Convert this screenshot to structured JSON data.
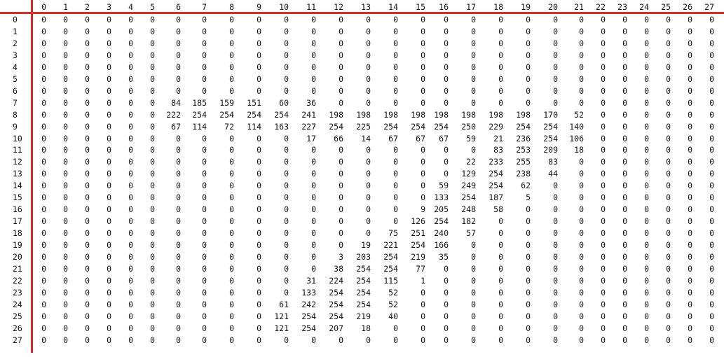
{
  "columns": [
    "0",
    "1",
    "2",
    "3",
    "4",
    "5",
    "6",
    "7",
    "8",
    "9",
    "10",
    "11",
    "12",
    "13",
    "14",
    "15",
    "16",
    "17",
    "18",
    "19",
    "20",
    "21",
    "22",
    "23",
    "24",
    "25",
    "26",
    "27"
  ],
  "rows": [
    {
      "label": "0",
      "values": [
        0,
        0,
        0,
        0,
        0,
        0,
        0,
        0,
        0,
        0,
        0,
        0,
        0,
        0,
        0,
        0,
        0,
        0,
        0,
        0,
        0,
        0,
        0,
        0,
        0,
        0,
        0,
        0
      ]
    },
    {
      "label": "1",
      "values": [
        0,
        0,
        0,
        0,
        0,
        0,
        0,
        0,
        0,
        0,
        0,
        0,
        0,
        0,
        0,
        0,
        0,
        0,
        0,
        0,
        0,
        0,
        0,
        0,
        0,
        0,
        0,
        0
      ]
    },
    {
      "label": "2",
      "values": [
        0,
        0,
        0,
        0,
        0,
        0,
        0,
        0,
        0,
        0,
        0,
        0,
        0,
        0,
        0,
        0,
        0,
        0,
        0,
        0,
        0,
        0,
        0,
        0,
        0,
        0,
        0,
        0
      ]
    },
    {
      "label": "3",
      "values": [
        0,
        0,
        0,
        0,
        0,
        0,
        0,
        0,
        0,
        0,
        0,
        0,
        0,
        0,
        0,
        0,
        0,
        0,
        0,
        0,
        0,
        0,
        0,
        0,
        0,
        0,
        0,
        0
      ]
    },
    {
      "label": "4",
      "values": [
        0,
        0,
        0,
        0,
        0,
        0,
        0,
        0,
        0,
        0,
        0,
        0,
        0,
        0,
        0,
        0,
        0,
        0,
        0,
        0,
        0,
        0,
        0,
        0,
        0,
        0,
        0,
        0
      ]
    },
    {
      "label": "5",
      "values": [
        0,
        0,
        0,
        0,
        0,
        0,
        0,
        0,
        0,
        0,
        0,
        0,
        0,
        0,
        0,
        0,
        0,
        0,
        0,
        0,
        0,
        0,
        0,
        0,
        0,
        0,
        0,
        0
      ]
    },
    {
      "label": "6",
      "values": [
        0,
        0,
        0,
        0,
        0,
        0,
        0,
        0,
        0,
        0,
        0,
        0,
        0,
        0,
        0,
        0,
        0,
        0,
        0,
        0,
        0,
        0,
        0,
        0,
        0,
        0,
        0,
        0
      ]
    },
    {
      "label": "7",
      "values": [
        0,
        0,
        0,
        0,
        0,
        0,
        84,
        185,
        159,
        151,
        60,
        36,
        0,
        0,
        0,
        0,
        0,
        0,
        0,
        0,
        0,
        0,
        0,
        0,
        0,
        0,
        0,
        0
      ]
    },
    {
      "label": "8",
      "values": [
        0,
        0,
        0,
        0,
        0,
        0,
        222,
        254,
        254,
        254,
        254,
        241,
        198,
        198,
        198,
        198,
        198,
        198,
        198,
        198,
        170,
        52,
        0,
        0,
        0,
        0,
        0,
        0
      ]
    },
    {
      "label": "9",
      "values": [
        0,
        0,
        0,
        0,
        0,
        0,
        67,
        114,
        72,
        114,
        163,
        227,
        254,
        225,
        254,
        254,
        254,
        250,
        229,
        254,
        254,
        140,
        0,
        0,
        0,
        0,
        0,
        0
      ]
    },
    {
      "label": "10",
      "values": [
        0,
        0,
        0,
        0,
        0,
        0,
        0,
        0,
        0,
        0,
        0,
        17,
        66,
        14,
        67,
        67,
        67,
        59,
        21,
        236,
        254,
        106,
        0,
        0,
        0,
        0,
        0,
        0
      ]
    },
    {
      "label": "11",
      "values": [
        0,
        0,
        0,
        0,
        0,
        0,
        0,
        0,
        0,
        0,
        0,
        0,
        0,
        0,
        0,
        0,
        0,
        0,
        83,
        253,
        209,
        18,
        0,
        0,
        0,
        0,
        0,
        0
      ]
    },
    {
      "label": "12",
      "values": [
        0,
        0,
        0,
        0,
        0,
        0,
        0,
        0,
        0,
        0,
        0,
        0,
        0,
        0,
        0,
        0,
        0,
        22,
        233,
        255,
        83,
        0,
        0,
        0,
        0,
        0,
        0,
        0
      ]
    },
    {
      "label": "13",
      "values": [
        0,
        0,
        0,
        0,
        0,
        0,
        0,
        0,
        0,
        0,
        0,
        0,
        0,
        0,
        0,
        0,
        0,
        129,
        254,
        238,
        44,
        0,
        0,
        0,
        0,
        0,
        0,
        0
      ]
    },
    {
      "label": "14",
      "values": [
        0,
        0,
        0,
        0,
        0,
        0,
        0,
        0,
        0,
        0,
        0,
        0,
        0,
        0,
        0,
        0,
        59,
        249,
        254,
        62,
        0,
        0,
        0,
        0,
        0,
        0,
        0,
        0
      ]
    },
    {
      "label": "15",
      "values": [
        0,
        0,
        0,
        0,
        0,
        0,
        0,
        0,
        0,
        0,
        0,
        0,
        0,
        0,
        0,
        0,
        133,
        254,
        187,
        5,
        0,
        0,
        0,
        0,
        0,
        0,
        0,
        0
      ]
    },
    {
      "label": "16",
      "values": [
        0,
        0,
        0,
        0,
        0,
        0,
        0,
        0,
        0,
        0,
        0,
        0,
        0,
        0,
        0,
        9,
        205,
        248,
        58,
        0,
        0,
        0,
        0,
        0,
        0,
        0,
        0,
        0
      ]
    },
    {
      "label": "17",
      "values": [
        0,
        0,
        0,
        0,
        0,
        0,
        0,
        0,
        0,
        0,
        0,
        0,
        0,
        0,
        0,
        126,
        254,
        182,
        0,
        0,
        0,
        0,
        0,
        0,
        0,
        0,
        0,
        0
      ]
    },
    {
      "label": "18",
      "values": [
        0,
        0,
        0,
        0,
        0,
        0,
        0,
        0,
        0,
        0,
        0,
        0,
        0,
        0,
        75,
        251,
        240,
        57,
        0,
        0,
        0,
        0,
        0,
        0,
        0,
        0,
        0,
        0
      ]
    },
    {
      "label": "19",
      "values": [
        0,
        0,
        0,
        0,
        0,
        0,
        0,
        0,
        0,
        0,
        0,
        0,
        0,
        19,
        221,
        254,
        166,
        0,
        0,
        0,
        0,
        0,
        0,
        0,
        0,
        0,
        0,
        0
      ]
    },
    {
      "label": "20",
      "values": [
        0,
        0,
        0,
        0,
        0,
        0,
        0,
        0,
        0,
        0,
        0,
        0,
        3,
        203,
        254,
        219,
        35,
        0,
        0,
        0,
        0,
        0,
        0,
        0,
        0,
        0,
        0,
        0
      ]
    },
    {
      "label": "21",
      "values": [
        0,
        0,
        0,
        0,
        0,
        0,
        0,
        0,
        0,
        0,
        0,
        0,
        38,
        254,
        254,
        77,
        0,
        0,
        0,
        0,
        0,
        0,
        0,
        0,
        0,
        0,
        0,
        0
      ]
    },
    {
      "label": "22",
      "values": [
        0,
        0,
        0,
        0,
        0,
        0,
        0,
        0,
        0,
        0,
        0,
        31,
        224,
        254,
        115,
        1,
        0,
        0,
        0,
        0,
        0,
        0,
        0,
        0,
        0,
        0,
        0,
        0
      ]
    },
    {
      "label": "23",
      "values": [
        0,
        0,
        0,
        0,
        0,
        0,
        0,
        0,
        0,
        0,
        0,
        133,
        254,
        254,
        52,
        0,
        0,
        0,
        0,
        0,
        0,
        0,
        0,
        0,
        0,
        0,
        0,
        0
      ]
    },
    {
      "label": "24",
      "values": [
        0,
        0,
        0,
        0,
        0,
        0,
        0,
        0,
        0,
        0,
        61,
        242,
        254,
        254,
        52,
        0,
        0,
        0,
        0,
        0,
        0,
        0,
        0,
        0,
        0,
        0,
        0,
        0
      ]
    },
    {
      "label": "25",
      "values": [
        0,
        0,
        0,
        0,
        0,
        0,
        0,
        0,
        0,
        0,
        121,
        254,
        254,
        219,
        40,
        0,
        0,
        0,
        0,
        0,
        0,
        0,
        0,
        0,
        0,
        0,
        0,
        0
      ]
    },
    {
      "label": "26",
      "values": [
        0,
        0,
        0,
        0,
        0,
        0,
        0,
        0,
        0,
        0,
        121,
        254,
        207,
        18,
        0,
        0,
        0,
        0,
        0,
        0,
        0,
        0,
        0,
        0,
        0,
        0,
        0,
        0
      ]
    },
    {
      "label": "27",
      "values": [
        0,
        0,
        0,
        0,
        0,
        0,
        0,
        0,
        0,
        0,
        0,
        0,
        0,
        0,
        0,
        0,
        0,
        0,
        0,
        0,
        0,
        0,
        0,
        0,
        0,
        0,
        0,
        0
      ]
    }
  ],
  "colors": {
    "axis_line": "#d92a2a",
    "text": "#111111",
    "background": "#ffffff"
  }
}
